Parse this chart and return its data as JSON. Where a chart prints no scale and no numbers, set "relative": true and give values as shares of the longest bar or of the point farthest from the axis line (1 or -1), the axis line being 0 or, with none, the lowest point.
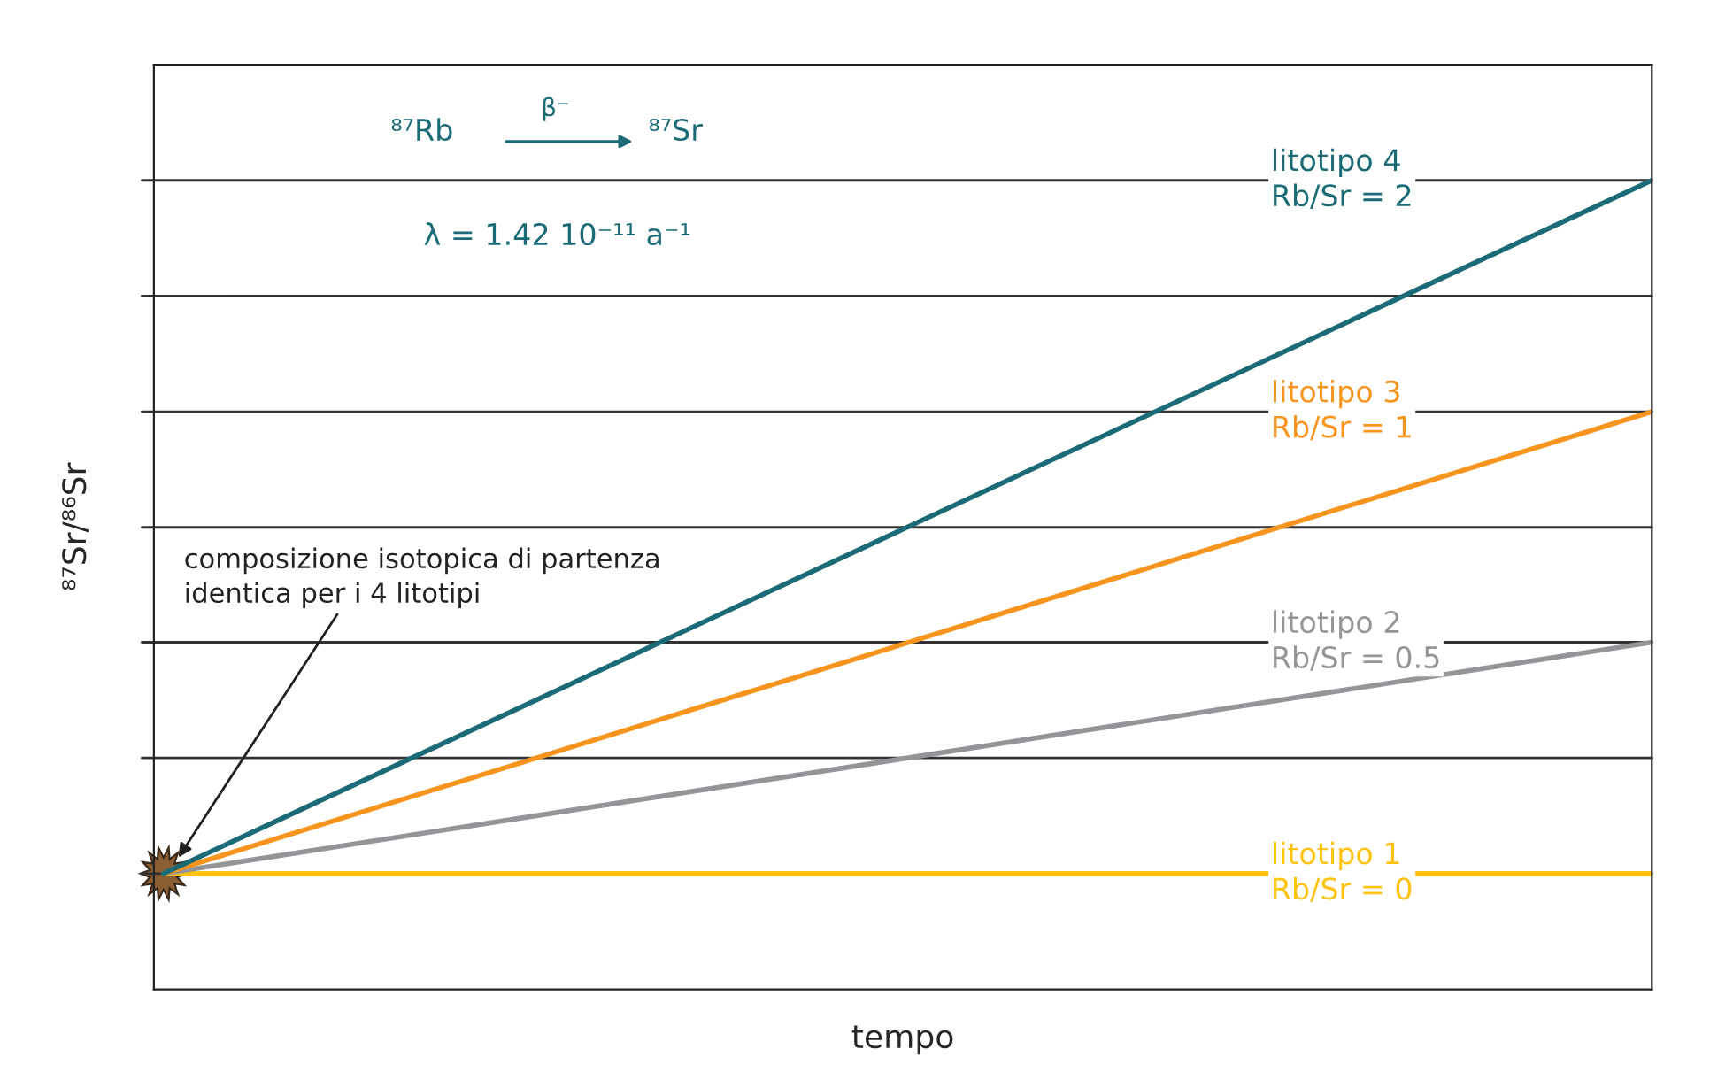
{
  "chart_data": {
    "type": "line",
    "relative": true,
    "xlabel": "tempo",
    "ylabel": "⁸⁷Sr/⁸⁶Sr",
    "categories": [
      null,
      null
    ],
    "series": [
      {
        "name": "litotipo 1\nRb/Sr = 0",
        "color": "#ffc20e",
        "values": [
          0.143,
          0.143
        ]
      },
      {
        "name": "litotipo 2\nRb/Sr = 0.5",
        "color": "#939598",
        "values": [
          0.143,
          0.429
        ]
      },
      {
        "name": "litotipo 3\nRb/Sr = 1",
        "color": "#f7941d",
        "values": [
          0.143,
          0.714
        ]
      },
      {
        "name": "litotipo 4\nRb/Sr = 2",
        "color": "#1b6b77",
        "values": [
          0.143,
          1.0
        ]
      }
    ],
    "annotations": [
      "⁸⁷Rb",
      "β⁻",
      "⁸⁷Sr",
      "λ = 1.42 10⁻¹¹ a⁻¹",
      "composizione isotopica di partenza\nidentica per i 4 litotipi"
    ],
    "ref_lines": [
      {
        "axis": "y",
        "value": 0.143,
        "color": "#333333"
      },
      {
        "axis": "y",
        "value": 0.286,
        "color": "#333333"
      },
      {
        "axis": "y",
        "value": 0.429,
        "color": "#333333"
      },
      {
        "axis": "y",
        "value": 0.571,
        "color": "#333333"
      },
      {
        "axis": "y",
        "value": 0.714,
        "color": "#333333"
      },
      {
        "axis": "y",
        "value": 0.857,
        "color": "#333333"
      },
      {
        "axis": "y",
        "value": 1.0,
        "color": "#333333"
      }
    ],
    "legend": false,
    "marker": "none",
    "line_style": "solid"
  }
}
